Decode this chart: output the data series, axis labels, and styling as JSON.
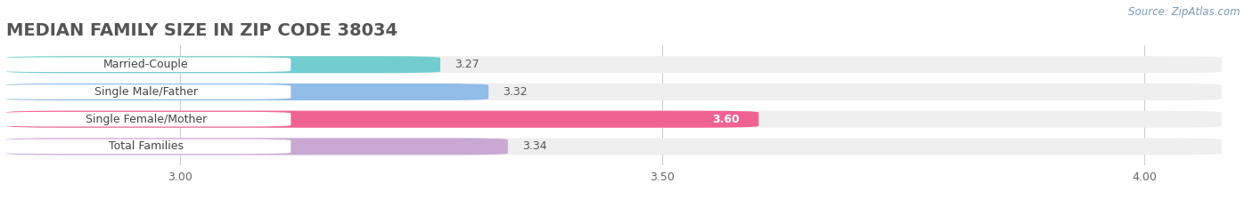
{
  "title": "MEDIAN FAMILY SIZE IN ZIP CODE 38034",
  "source": "Source: ZipAtlas.com",
  "categories": [
    "Married-Couple",
    "Single Male/Father",
    "Single Female/Mother",
    "Total Families"
  ],
  "values": [
    3.27,
    3.32,
    3.6,
    3.34
  ],
  "bar_colors": [
    "#72cece",
    "#92bce8",
    "#f06292",
    "#c9a8d4"
  ],
  "label_colors": [
    "#555555",
    "#555555",
    "#ffffff",
    "#555555"
  ],
  "bar_bg_color": "#efefef",
  "xlim": [
    2.82,
    4.08
  ],
  "xticks": [
    3.0,
    3.5,
    4.0
  ],
  "title_color": "#555555",
  "title_fontsize": 14,
  "source_color": "#7a9ab5",
  "bar_height": 0.62,
  "figsize": [
    14.06,
    2.33
  ],
  "dpi": 100
}
